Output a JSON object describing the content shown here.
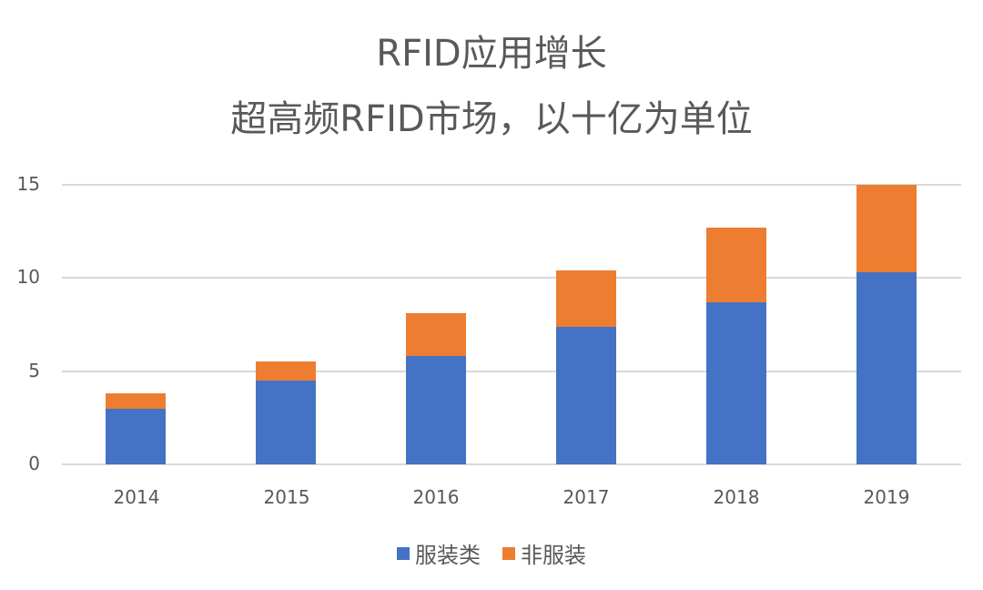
{
  "title": "RFID应用增长",
  "subtitle": "超高频RFID市场，以十亿为单位",
  "colors": {
    "apparel": "#4472C4",
    "non_apparel": "#ED7D31",
    "grid": "#D9D9D9",
    "text": "#595959"
  },
  "chart_data": {
    "type": "bar",
    "stacked": true,
    "title": "RFID应用增长",
    "subtitle": "超高频RFID市场，以十亿为单位",
    "categories": [
      "2014",
      "2015",
      "2016",
      "2017",
      "2018",
      "2019"
    ],
    "series": [
      {
        "name": "服装类",
        "color": "#4472C4",
        "values": [
          3.0,
          4.5,
          5.8,
          7.4,
          8.7,
          10.3
        ]
      },
      {
        "name": "非服装",
        "color": "#ED7D31",
        "values": [
          0.8,
          1.0,
          2.3,
          3.0,
          4.0,
          4.7
        ]
      }
    ],
    "totals": [
      3.8,
      5.5,
      8.1,
      10.4,
      12.7,
      15.0
    ],
    "xlabel": "",
    "ylabel": "",
    "ylim": [
      0,
      15
    ],
    "yticks": [
      "0",
      "5",
      "10",
      "15"
    ],
    "grid": true,
    "legend_position": "bottom"
  }
}
